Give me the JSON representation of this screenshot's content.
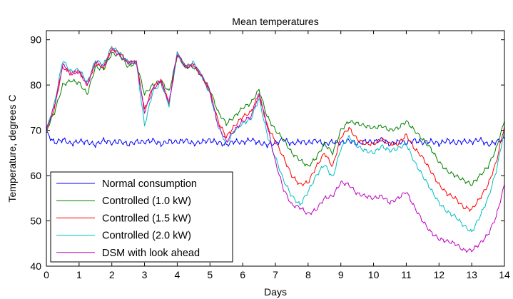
{
  "chart_data": {
    "type": "line",
    "title": "Mean temperatures",
    "xlabel": "Days",
    "ylabel": "Temperature, degrees C",
    "xlim": [
      0,
      14
    ],
    "ylim": [
      40,
      92
    ],
    "xticks": [
      0,
      1,
      2,
      3,
      4,
      5,
      6,
      7,
      8,
      9,
      10,
      11,
      12,
      13,
      14
    ],
    "yticks": [
      40,
      50,
      60,
      70,
      80,
      90
    ],
    "grid": false,
    "legend_position": "bottom-left",
    "x": [
      0,
      0.25,
      0.5,
      0.75,
      1,
      1.25,
      1.5,
      1.75,
      2,
      2.25,
      2.5,
      2.75,
      3,
      3.25,
      3.5,
      3.75,
      4,
      4.25,
      4.5,
      4.75,
      5,
      5.25,
      5.5,
      5.75,
      6,
      6.25,
      6.5,
      6.75,
      7,
      7.25,
      7.5,
      7.75,
      8,
      8.25,
      8.5,
      8.75,
      9,
      9.25,
      9.5,
      9.75,
      10,
      10.25,
      10.5,
      10.75,
      11,
      11.25,
      11.5,
      11.75,
      12,
      12.25,
      12.5,
      12.75,
      13,
      13.25,
      13.5,
      13.75,
      14
    ],
    "series": [
      {
        "name": "Normal consumption",
        "color": "#0000ff",
        "values": [
          69.5,
          67.2,
          68.0,
          67.0,
          67.6,
          67.4,
          66.8,
          67.8,
          67.2,
          67.6,
          66.9,
          67.5,
          67.4,
          67.8,
          66.9,
          67.6,
          67.4,
          67.8,
          67.0,
          67.5,
          67.8,
          67.3,
          66.8,
          67.6,
          67.3,
          68.0,
          67.2,
          66.8,
          67.2,
          68.0,
          67.0,
          67.6,
          67.2,
          67.8,
          66.9,
          67.5,
          67.2,
          67.8,
          67.0,
          67.6,
          67.4,
          68.0,
          66.9,
          67.5,
          67.2,
          67.8,
          67.3,
          67.6,
          67.0,
          67.8,
          67.2,
          67.6,
          67.4,
          68.0,
          66.8,
          67.5,
          68.0
        ]
      },
      {
        "name": "Controlled (1.0 kW)",
        "color": "#008000",
        "values": [
          70.0,
          74.0,
          80.0,
          81.0,
          80.5,
          78.0,
          84.0,
          83.5,
          87.0,
          86.5,
          84.0,
          85.0,
          78.0,
          80.0,
          81.0,
          78.5,
          86.5,
          84.0,
          84.0,
          82.0,
          79.0,
          74.0,
          71.5,
          73.0,
          75.0,
          76.0,
          79.0,
          73.0,
          70.0,
          68.0,
          65.0,
          63.5,
          62.0,
          64.0,
          67.0,
          65.0,
          70.0,
          72.0,
          71.5,
          71.0,
          70.5,
          71.0,
          70.0,
          70.5,
          72.0,
          70.0,
          68.0,
          66.0,
          63.0,
          61.0,
          60.0,
          59.0,
          58.0,
          60.0,
          62.0,
          66.0,
          72.0
        ]
      },
      {
        "name": "Controlled (1.5 kW)",
        "color": "#ff0000",
        "values": [
          70.0,
          75.0,
          84.0,
          82.5,
          83.0,
          80.0,
          85.0,
          84.0,
          88.0,
          87.0,
          85.0,
          85.0,
          74.5,
          79.5,
          81.0,
          76.0,
          87.0,
          84.0,
          84.5,
          82.0,
          78.5,
          72.0,
          68.5,
          71.0,
          73.0,
          74.0,
          78.0,
          71.0,
          67.5,
          64.0,
          60.0,
          58.0,
          58.5,
          62.0,
          65.0,
          62.0,
          68.5,
          70.5,
          68.0,
          67.0,
          67.0,
          68.0,
          67.0,
          67.0,
          69.0,
          66.0,
          64.0,
          61.0,
          58.0,
          56.0,
          55.0,
          53.0,
          52.5,
          55.0,
          58.0,
          63.0,
          71.0
        ]
      },
      {
        "name": "Controlled (2.0 kW)",
        "color": "#00bfbf",
        "values": [
          70.0,
          76.0,
          85.5,
          83.0,
          83.5,
          80.5,
          85.5,
          84.5,
          88.5,
          87.0,
          85.0,
          85.0,
          71.0,
          78.5,
          80.5,
          75.5,
          87.0,
          84.0,
          85.0,
          82.0,
          78.0,
          71.0,
          67.0,
          70.0,
          71.5,
          72.5,
          77.0,
          69.0,
          64.0,
          59.0,
          55.5,
          53.5,
          56.5,
          60.0,
          62.5,
          59.5,
          66.0,
          68.5,
          66.5,
          65.5,
          65.0,
          66.5,
          65.5,
          66.0,
          67.0,
          63.0,
          60.0,
          57.0,
          54.0,
          52.0,
          51.0,
          49.0,
          47.5,
          51.0,
          55.0,
          61.0,
          70.0
        ]
      },
      {
        "name": "DSM with look ahead",
        "color": "#bf00bf",
        "values": [
          70.0,
          75.5,
          84.5,
          82.5,
          83.0,
          80.0,
          85.0,
          84.0,
          88.0,
          86.5,
          85.0,
          85.0,
          74.0,
          79.0,
          81.0,
          76.0,
          87.0,
          84.0,
          84.5,
          82.0,
          78.5,
          71.0,
          67.5,
          70.0,
          72.0,
          73.0,
          78.0,
          71.0,
          63.0,
          57.0,
          53.5,
          53.0,
          51.5,
          52.5,
          55.0,
          55.5,
          58.5,
          58.0,
          56.0,
          55.5,
          55.0,
          55.5,
          54.0,
          55.0,
          56.5,
          53.0,
          50.0,
          47.5,
          46.0,
          45.5,
          45.0,
          43.5,
          43.5,
          45.0,
          47.0,
          51.0,
          58.0
        ]
      }
    ]
  }
}
